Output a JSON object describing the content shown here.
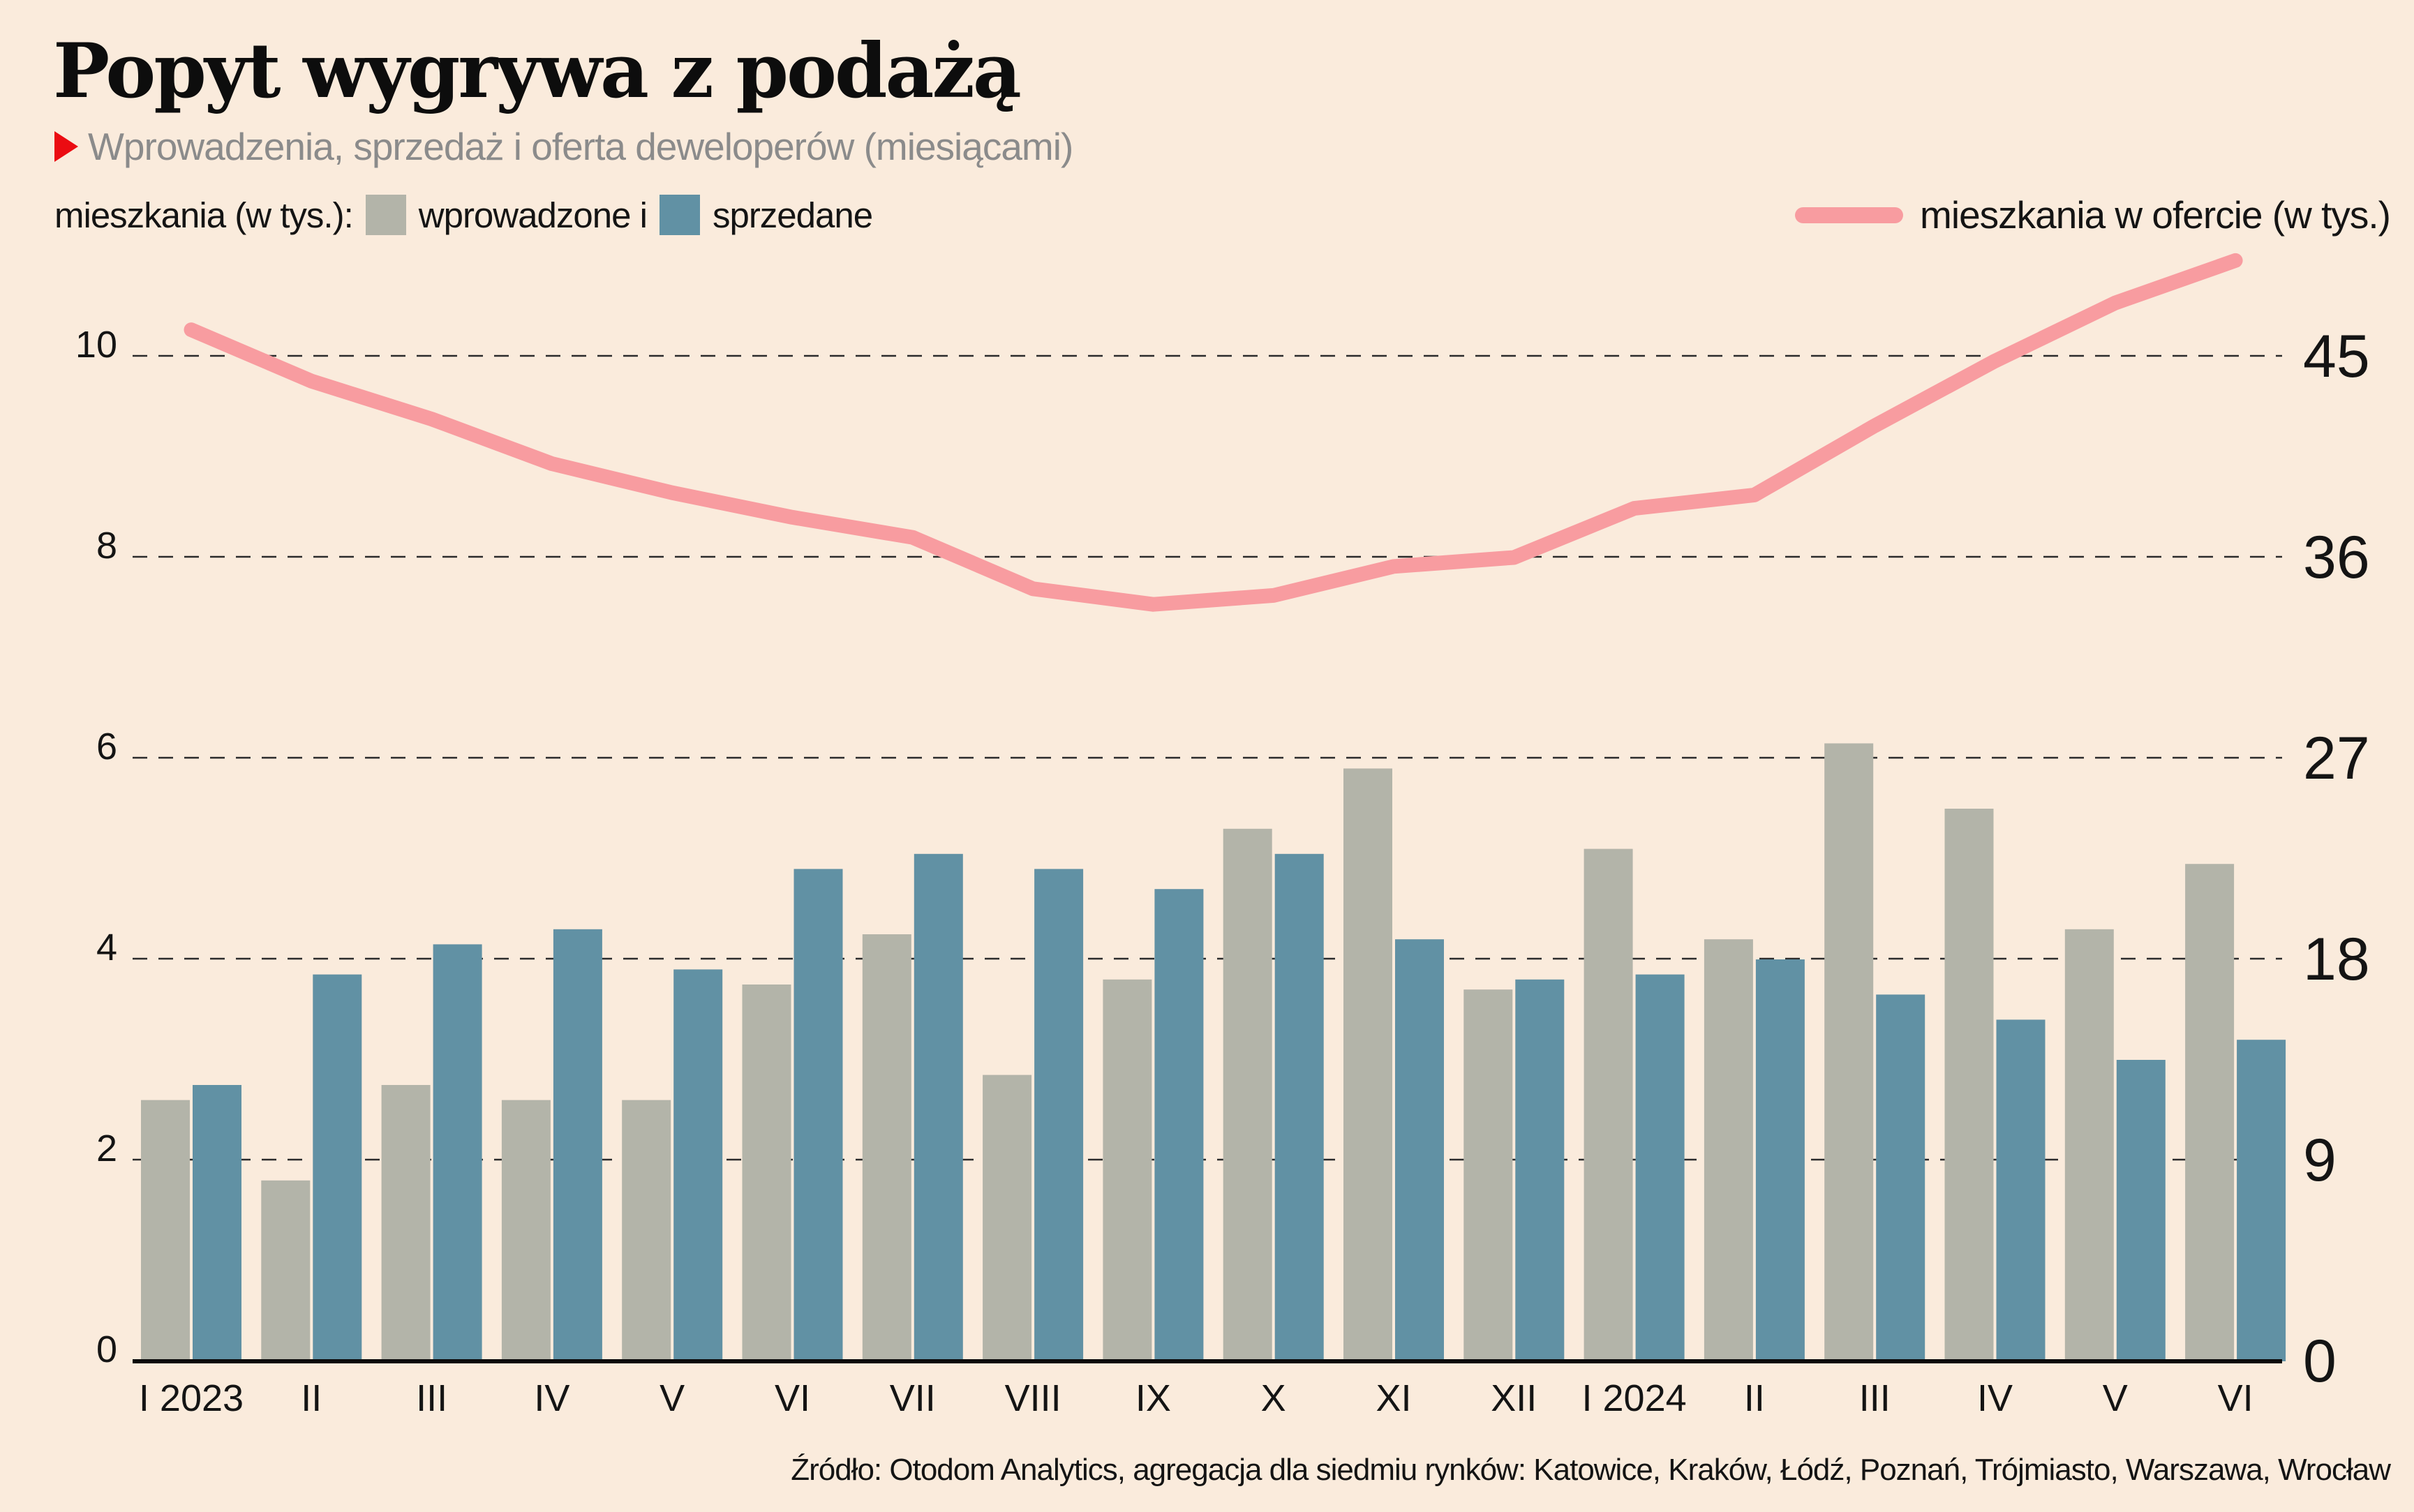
{
  "title": "Popyt wygrywa z podażą",
  "subtitle": "Wprowadzenia, sprzedaż i oferta deweloperów (miesiącami)",
  "legend": {
    "measure_label": "mieszkania (w tys.):",
    "introduced_label": "wprowadzone i",
    "sold_label": "sprzedane",
    "offer_label": "mieszkania w ofercie (w tys.)"
  },
  "source_note": "Źródło: Otodom Analytics, agregacja dla siedmiu rynków: Katowice, Kraków, Łódź, Poznań, Trójmiasto, Warszawa, Wrocław",
  "colors": {
    "background": "#FAEBDC",
    "bar_introduced": "#B3B4A9",
    "bar_sold": "#6191A4",
    "line_offer": "#F89CA0",
    "grid": "#2B2B2B",
    "baseline": "#0A0A0A",
    "text": "#141414",
    "subtitle_text": "#8B8B8B",
    "accent_red": "#EB0C12"
  },
  "chart_data": {
    "type": "bar+line",
    "categories": [
      "I 2023",
      "II",
      "III",
      "IV",
      "V",
      "VI",
      "VII",
      "VIII",
      "IX",
      "X",
      "XI",
      "XII",
      "I 2024",
      "II",
      "III",
      "IV",
      "V",
      "VI"
    ],
    "series": [
      {
        "name": "wprowadzone",
        "type": "bar",
        "axis": "left",
        "color": "#B3B4A9",
        "values": [
          2.6,
          1.8,
          2.75,
          2.6,
          2.6,
          3.75,
          4.25,
          2.85,
          3.8,
          5.3,
          5.9,
          3.7,
          5.1,
          4.2,
          6.15,
          5.5,
          4.3,
          4.95
        ]
      },
      {
        "name": "sprzedane",
        "type": "bar",
        "axis": "left",
        "color": "#6191A4",
        "values": [
          2.75,
          3.85,
          4.15,
          4.3,
          3.9,
          4.9,
          5.05,
          4.9,
          4.7,
          5.05,
          4.2,
          3.8,
          3.85,
          4.0,
          3.65,
          3.4,
          3.0,
          3.2
        ]
      },
      {
        "name": "mieszkania w ofercie",
        "type": "line",
        "axis": "right",
        "color": "#F89CA0",
        "values": [
          46.2,
          43.9,
          42.2,
          40.2,
          38.9,
          37.8,
          36.9,
          34.6,
          33.9,
          34.3,
          35.6,
          36.0,
          38.2,
          38.8,
          41.9,
          44.8,
          47.4,
          49.3
        ]
      }
    ],
    "left_axis": {
      "title": "mieszkania (w tys.)",
      "ticks": [
        0,
        2,
        4,
        6,
        8,
        10
      ],
      "range": [
        0,
        11
      ]
    },
    "right_axis": {
      "title": "mieszkania w ofercie (w tys.)",
      "ticks": [
        0,
        9,
        18,
        27,
        36,
        45
      ],
      "range": [
        0,
        49.5
      ]
    },
    "grid": "dashed-horizontal",
    "legend_position": "top"
  }
}
